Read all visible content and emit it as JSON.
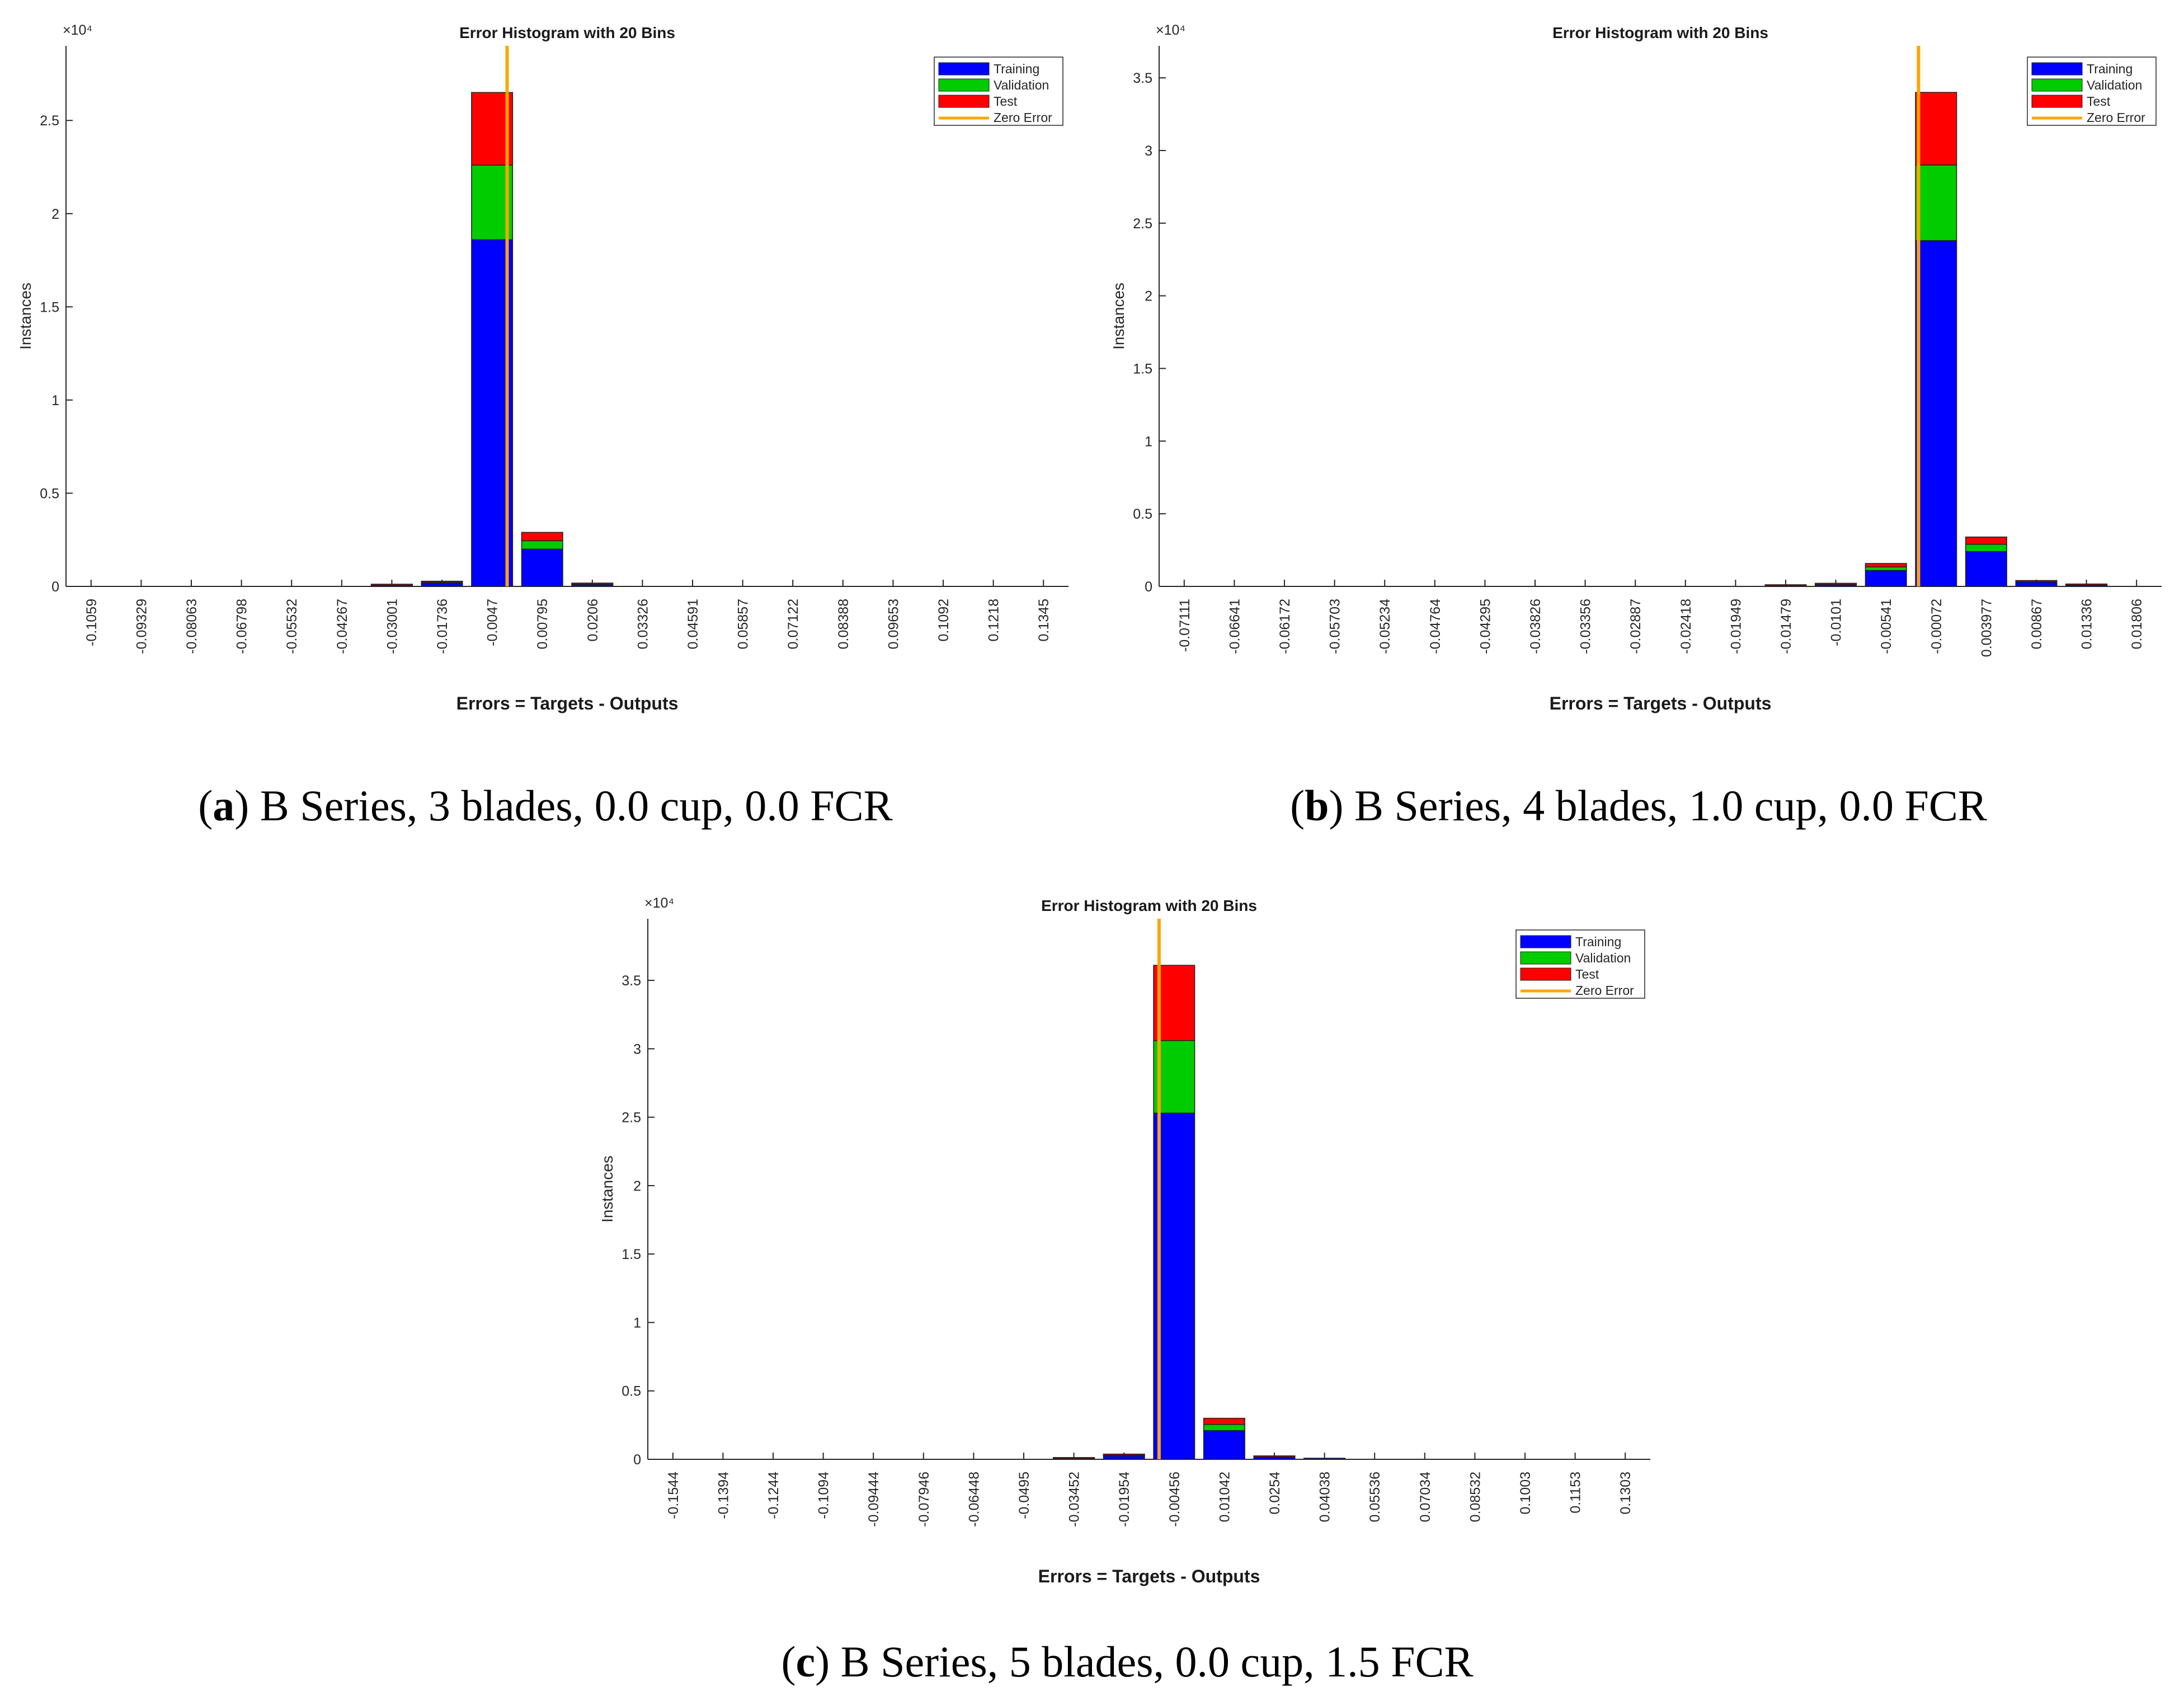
{
  "figure": {
    "panels": [
      {
        "caption": {
          "letter": "a",
          "text": "B Series, 3 blades, 0.0 cup, 0.0 FCR"
        },
        "chart_data": {
          "type": "bar",
          "stacked": true,
          "title": "Error Histogram with 20 Bins",
          "xlabel": "Errors = Targets - Outputs",
          "ylabel": "Instances",
          "y_exponent": "×10⁴",
          "ylim": [
            0,
            2.9
          ],
          "yticks": [
            0,
            0.5,
            1,
            1.5,
            2,
            2.5
          ],
          "ytick_labels": [
            "0",
            "0.5",
            "1",
            "1.5",
            "2",
            "2.5"
          ],
          "categories": [
            "-0.1059",
            "-0.09329",
            "-0.08063",
            "-0.06798",
            "-0.05532",
            "-0.04267",
            "-0.03001",
            "-0.01736",
            "-0.0047",
            "0.00795",
            "0.0206",
            "0.03326",
            "0.04591",
            "0.05857",
            "0.07122",
            "0.08388",
            "0.09653",
            "0.1092",
            "0.1218",
            "0.1345"
          ],
          "zero_error_position": 8.8,
          "series": [
            {
              "name": "Training",
              "color": "#0000ff",
              "values": [
                0,
                0,
                0,
                0,
                0,
                0,
                0.005,
                0.018,
                1.86,
                0.2,
                0.01,
                0,
                0,
                0,
                0,
                0,
                0,
                0,
                0,
                0
              ]
            },
            {
              "name": "Validation",
              "color": "#00cc00",
              "values": [
                0,
                0,
                0,
                0,
                0,
                0,
                0.001,
                0.004,
                0.4,
                0.045,
                0.002,
                0,
                0,
                0,
                0,
                0,
                0,
                0,
                0,
                0
              ]
            },
            {
              "name": "Test",
              "color": "#ff0000",
              "values": [
                0,
                0,
                0,
                0,
                0,
                0,
                0.001,
                0.004,
                0.39,
                0.045,
                0.002,
                0,
                0,
                0,
                0,
                0,
                0,
                0,
                0,
                0
              ]
            }
          ],
          "legend": {
            "placement": "top-right",
            "entries": [
              "Training",
              "Validation",
              "Test",
              "Zero Error"
            ],
            "zero_error_color": "#ffa500"
          }
        }
      },
      {
        "caption": {
          "letter": "b",
          "text": "B Series, 4 blades, 1.0 cup, 0.0 FCR"
        },
        "chart_data": {
          "type": "bar",
          "stacked": true,
          "title": "Error Histogram with 20 Bins",
          "xlabel": "Errors = Targets - Outputs",
          "ylabel": "Instances",
          "y_exponent": "×10⁴",
          "ylim": [
            0,
            3.72
          ],
          "yticks": [
            0,
            0.5,
            1,
            1.5,
            2,
            2.5,
            3,
            3.5
          ],
          "ytick_labels": [
            "0",
            "0.5",
            "1",
            "1.5",
            "2",
            "2.5",
            "3",
            "3.5"
          ],
          "categories": [
            "-0.07111",
            "-0.06641",
            "-0.06172",
            "-0.05703",
            "-0.05234",
            "-0.04764",
            "-0.04295",
            "-0.03826",
            "-0.03356",
            "-0.02887",
            "-0.02418",
            "-0.01949",
            "-0.01479",
            "-0.0101",
            "-0.00541",
            "-0.00072",
            "0.003977",
            "0.00867",
            "0.01336",
            "0.01806"
          ],
          "zero_error_position": 15.15,
          "series": [
            {
              "name": "Training",
              "color": "#0000ff",
              "values": [
                0,
                0,
                0,
                0,
                0,
                0,
                0,
                0,
                0,
                0,
                0,
                0,
                0.003,
                0.012,
                0.11,
                2.38,
                0.24,
                0.03,
                0.008,
                0
              ]
            },
            {
              "name": "Validation",
              "color": "#00cc00",
              "values": [
                0,
                0,
                0,
                0,
                0,
                0,
                0,
                0,
                0,
                0,
                0,
                0,
                0.001,
                0.002,
                0.024,
                0.52,
                0.05,
                0.003,
                0.001,
                0
              ]
            },
            {
              "name": "Test",
              "color": "#ff0000",
              "values": [
                0,
                0,
                0,
                0,
                0,
                0,
                0,
                0,
                0,
                0,
                0,
                0,
                0.001,
                0.002,
                0.024,
                0.5,
                0.05,
                0.003,
                0.001,
                0
              ]
            }
          ],
          "legend": {
            "placement": "top-right",
            "entries": [
              "Training",
              "Validation",
              "Test",
              "Zero Error"
            ],
            "zero_error_color": "#ffa500"
          }
        }
      },
      {
        "caption": {
          "letter": "c",
          "text": "B Series, 5 blades, 0.0 cup, 1.5 FCR"
        },
        "chart_data": {
          "type": "bar",
          "stacked": true,
          "title": "Error Histogram with 20 Bins",
          "xlabel": "Errors = Targets - Outputs",
          "ylabel": "Instances",
          "y_exponent": "×10⁴",
          "ylim": [
            0,
            3.95
          ],
          "yticks": [
            0,
            0.5,
            1,
            1.5,
            2,
            2.5,
            3,
            3.5
          ],
          "ytick_labels": [
            "0",
            "0.5",
            "1",
            "1.5",
            "2",
            "2.5",
            "3",
            "3.5"
          ],
          "categories": [
            "-0.1544",
            "-0.1394",
            "-0.1244",
            "-0.1094",
            "-0.09444",
            "-0.07946",
            "-0.06448",
            "-0.0495",
            "-0.03452",
            "-0.01954",
            "-0.00456",
            "0.01042",
            "0.0254",
            "0.04038",
            "0.05536",
            "0.07034",
            "0.08532",
            "0.1003",
            "0.1153",
            "0.1303"
          ],
          "zero_error_position": 10.2,
          "series": [
            {
              "name": "Training",
              "color": "#0000ff",
              "values": [
                0,
                0,
                0,
                0,
                0,
                0,
                0,
                0,
                0.004,
                0.025,
                2.53,
                0.21,
                0.015,
                0.002,
                0,
                0,
                0,
                0,
                0,
                0
              ]
            },
            {
              "name": "Validation",
              "color": "#00cc00",
              "values": [
                0,
                0,
                0,
                0,
                0,
                0,
                0,
                0,
                0.001,
                0.005,
                0.53,
                0.045,
                0.002,
                0,
                0,
                0,
                0,
                0,
                0,
                0
              ]
            },
            {
              "name": "Test",
              "color": "#ff0000",
              "values": [
                0,
                0,
                0,
                0,
                0,
                0,
                0,
                0,
                0.001,
                0.005,
                0.55,
                0.045,
                0.002,
                0,
                0,
                0,
                0,
                0,
                0,
                0
              ]
            }
          ],
          "legend": {
            "placement": "top-right",
            "entries": [
              "Training",
              "Validation",
              "Test",
              "Zero Error"
            ],
            "zero_error_color": "#ffa500"
          }
        }
      }
    ]
  }
}
